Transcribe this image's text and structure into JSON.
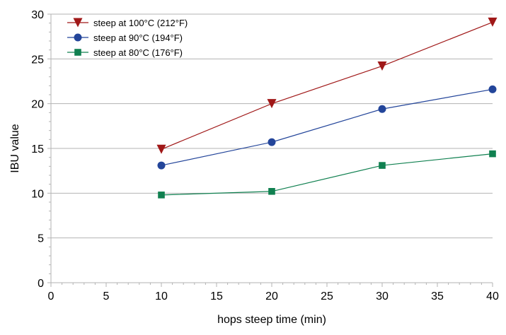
{
  "chart_data": {
    "type": "line",
    "title": "",
    "xlabel": "hops steep time (min)",
    "ylabel": "IBU value",
    "xlim": [
      0,
      40
    ],
    "ylim": [
      0,
      30
    ],
    "xticks": [
      0,
      5,
      10,
      15,
      20,
      25,
      30,
      35,
      40
    ],
    "yticks": [
      0,
      5,
      10,
      15,
      20,
      25,
      30
    ],
    "grid": "horizontal",
    "legend_position": "top-left",
    "series": [
      {
        "name": "steep at 100°C (212°F)",
        "color": "#a01818",
        "marker": "triangle-down",
        "x": [
          10,
          20,
          30,
          40
        ],
        "y": [
          14.9,
          20.0,
          24.2,
          29.1
        ]
      },
      {
        "name": "steep at 90°C (194°F)",
        "color": "#23459a",
        "marker": "circle",
        "x": [
          10,
          20,
          30,
          40
        ],
        "y": [
          13.1,
          15.7,
          19.4,
          21.6
        ]
      },
      {
        "name": "steep at 80°C (176°F)",
        "color": "#108050",
        "marker": "square",
        "x": [
          10,
          20,
          30,
          40
        ],
        "y": [
          9.8,
          10.2,
          13.1,
          14.4
        ]
      }
    ]
  }
}
